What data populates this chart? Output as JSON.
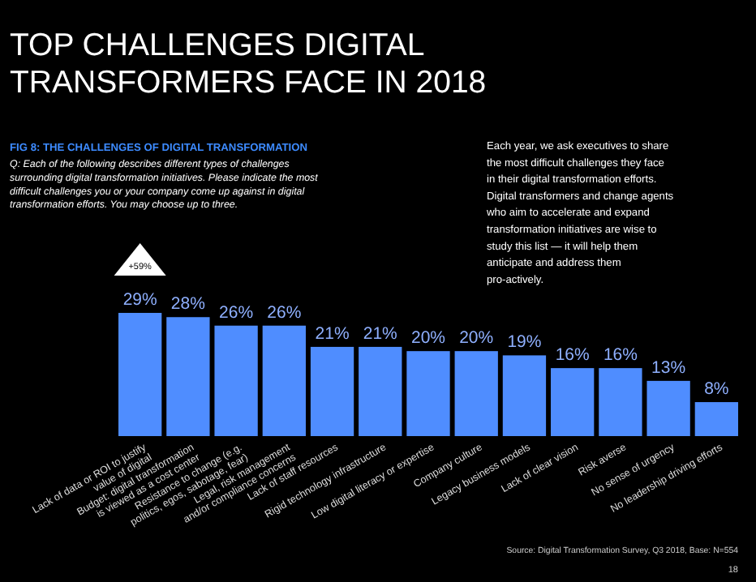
{
  "chart_data": {
    "type": "bar",
    "title": "TOP CHALLENGES DIGITAL TRANSFORMERS FACE IN 2018",
    "subtitle": "FIG 8: THE CHALLENGES OF DIGITAL TRANSFORMATION",
    "categories": [
      "Lack of data or ROI to justify\nvalue of digital",
      "Budget: digital transformation\nis viewed as a cost center",
      "Resistance to change (e.g.\npolitics, egos, sabotage, fear)",
      "Legal, risk management\nand/or compliance concerns",
      "Lack of staff resources",
      "Rigid technology infrastructure",
      "Low digital literacy or expertise",
      "Company culture",
      "Legacy business models",
      "Lack of clear vision",
      "Risk averse",
      "No sense of urgency",
      "No leadership driving efforts"
    ],
    "values": [
      29,
      28,
      26,
      26,
      21,
      21,
      20,
      20,
      19,
      16,
      16,
      13,
      8
    ],
    "value_labels": [
      "29%",
      "28%",
      "26%",
      "26%",
      "21%",
      "21%",
      "20%",
      "20%",
      "19%",
      "16%",
      "16%",
      "13%",
      "8%"
    ],
    "color": "#4f8dff",
    "annotations": [
      "Q: Each of the following describes different types of challenges surrounding digital transformation initiatives. Please indicate the most difficult challenges you or your company come up against in digital transformation efforts. You may choose up to three.",
      "Each year, we ask executives to share the most difficult challenges they face in their digital transformation efforts. Digital transformers and change agents who aim to accelerate and expand transformation initiatives are wise to study this list — it will help them anticipate and address them pro-actively.",
      "+59%",
      "Source: Digital Transformation Survey, Q3 2018, Base: N=554",
      "18"
    ]
  }
}
